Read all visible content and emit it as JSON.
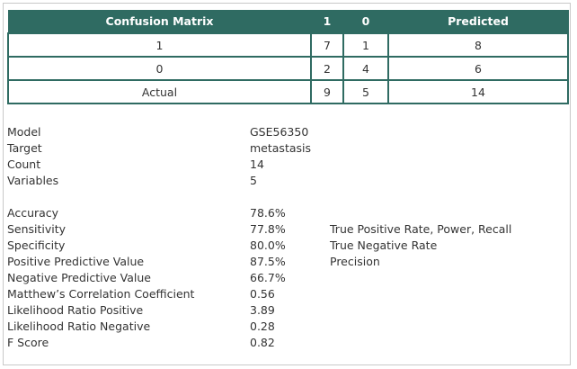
{
  "confusion_matrix": {
    "headers": [
      "Confusion Matrix",
      "1",
      "0",
      "Predicted"
    ],
    "rows": [
      [
        "1",
        "7",
        "1",
        "8"
      ],
      [
        "0",
        "2",
        "4",
        "6"
      ],
      [
        "Actual",
        "9",
        "5",
        "14"
      ]
    ]
  },
  "info": [
    {
      "label": "Model",
      "value": "GSE56350"
    },
    {
      "label": "Target",
      "value": "metastasis"
    },
    {
      "label": "Count",
      "value": "14"
    },
    {
      "label": "Variables",
      "value": "5"
    }
  ],
  "metrics": [
    {
      "label": "Accuracy",
      "value": "78.6%",
      "desc": ""
    },
    {
      "label": "Sensitivity",
      "value": "77.8%",
      "desc": "True Positive Rate, Power, Recall"
    },
    {
      "label": "Specificity",
      "value": "80.0%",
      "desc": "True Negative Rate"
    },
    {
      "label": "Positive Predictive Value",
      "value": "87.5%",
      "desc": "Precision"
    },
    {
      "label": "Negative Predictive Value",
      "value": "66.7%",
      "desc": ""
    },
    {
      "label": "Matthew’s Correlation Coefficient",
      "value": "0.56",
      "desc": ""
    },
    {
      "label": "Likelihood Ratio Positive",
      "value": "3.89",
      "desc": ""
    },
    {
      "label": "Likelihood Ratio Negative",
      "value": "0.28",
      "desc": ""
    },
    {
      "label": "F Score",
      "value": "0.82",
      "desc": ""
    }
  ]
}
